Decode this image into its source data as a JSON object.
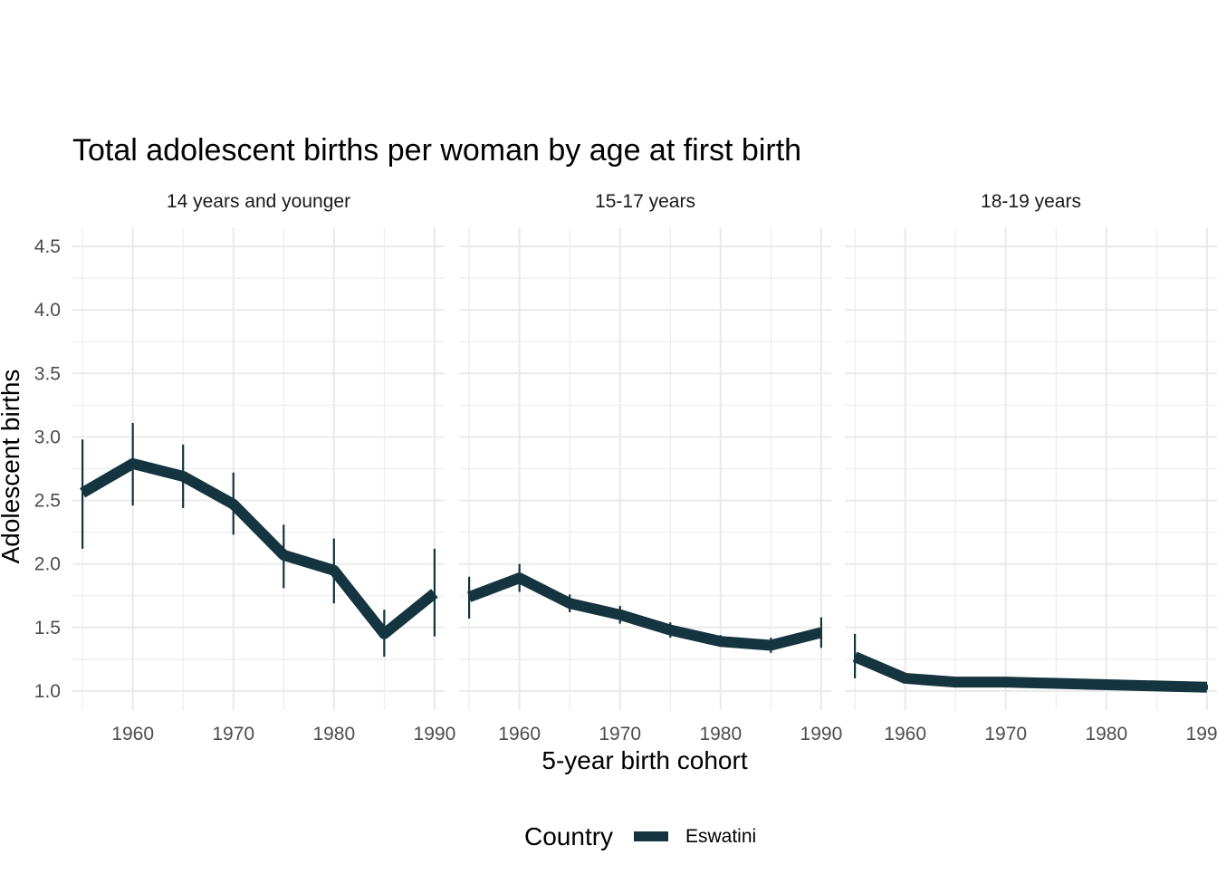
{
  "chart_data": {
    "type": "line",
    "title": "Total adolescent births per woman by age at first birth",
    "xlabel": "5-year birth cohort",
    "ylabel": "Adolescent births",
    "xlim": [
      1954,
      1991
    ],
    "ylim": [
      0.85,
      4.65
    ],
    "x_ticks": [
      1960,
      1970,
      1980,
      1990
    ],
    "y_ticks": [
      1.0,
      1.5,
      2.0,
      2.5,
      3.0,
      3.5,
      4.0,
      4.5
    ],
    "y_tick_labels": [
      "1.0",
      "1.5",
      "2.0",
      "2.5",
      "3.0",
      "3.5",
      "4.0",
      "4.5"
    ],
    "grid": true,
    "legend": {
      "title": "Country",
      "position": "bottom",
      "entries": [
        "Eswatini"
      ]
    },
    "series_color": "#14343f",
    "panels": [
      {
        "label": "14 years and younger",
        "series": [
          {
            "name": "Eswatini",
            "x": [
              1955,
              1960,
              1965,
              1970,
              1975,
              1980,
              1985,
              1990
            ],
            "y": [
              2.56,
              2.79,
              2.69,
              2.47,
              2.07,
              1.95,
              1.45,
              1.77
            ],
            "lower": [
              2.12,
              2.46,
              2.44,
              2.23,
              1.81,
              1.69,
              1.27,
              1.43
            ],
            "upper": [
              2.98,
              3.11,
              2.94,
              2.72,
              2.31,
              2.2,
              1.64,
              2.12
            ]
          }
        ]
      },
      {
        "label": "15-17 years",
        "series": [
          {
            "name": "Eswatini",
            "x": [
              1955,
              1960,
              1965,
              1970,
              1975,
              1980,
              1985,
              1990
            ],
            "y": [
              1.74,
              1.89,
              1.69,
              1.6,
              1.48,
              1.39,
              1.36,
              1.46
            ],
            "lower": [
              1.57,
              1.78,
              1.62,
              1.53,
              1.42,
              1.35,
              1.3,
              1.34
            ],
            "upper": [
              1.9,
              2.0,
              1.76,
              1.67,
              1.54,
              1.44,
              1.42,
              1.58
            ]
          }
        ]
      },
      {
        "label": "18-19 years",
        "series": [
          {
            "name": "Eswatini",
            "x": [
              1955,
              1960,
              1965,
              1970,
              1975,
              1980,
              1985,
              1990
            ],
            "y": [
              1.27,
              1.1,
              1.07,
              1.07,
              1.06,
              1.05,
              1.04,
              1.03
            ],
            "lower": [
              1.1,
              1.07,
              1.05,
              1.05,
              1.04,
              1.03,
              1.02,
              1.01
            ],
            "upper": [
              1.45,
              1.14,
              1.09,
              1.09,
              1.08,
              1.07,
              1.06,
              1.05
            ]
          }
        ]
      }
    ]
  }
}
